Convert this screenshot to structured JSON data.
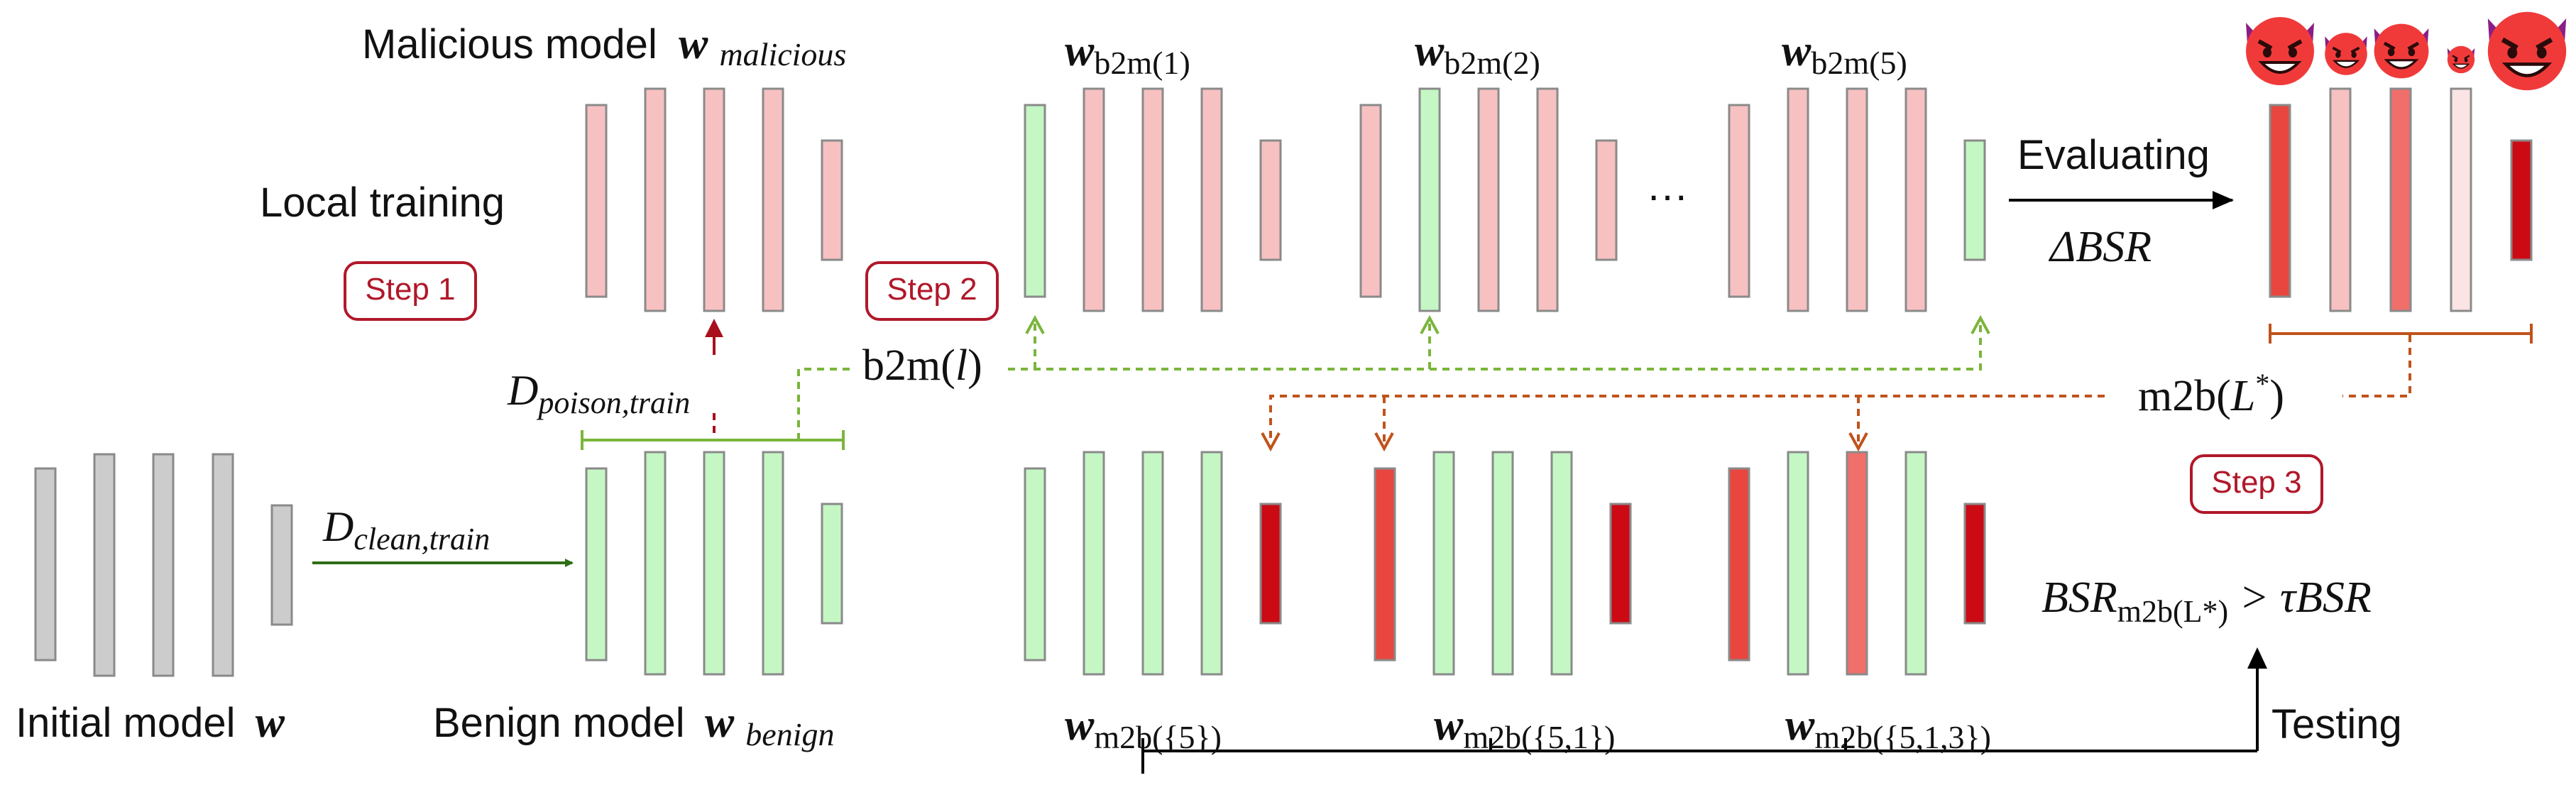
{
  "labels": {
    "malicious_model": "Malicious model",
    "w_malicious_sym": "w",
    "w_malicious_sub": "malicious",
    "local_training": "Local training",
    "initial_model": "Initial model",
    "initial_model_sym": "w",
    "benign_model": "Benign model",
    "w_benign_sym": "w",
    "w_benign_sub": "benign",
    "d_poison": "D",
    "d_poison_sub": "poison,train",
    "d_clean": "D",
    "d_clean_sub": "clean,train",
    "b2m_label": "b2m(",
    "b2m_var": "l",
    "b2m_close": ")",
    "m2b_label": "m2b(",
    "m2b_var": "L",
    "m2b_star": "*",
    "m2b_close": ")",
    "ellipsis": "···",
    "evaluating": "Evaluating",
    "delta_bsr": "ΔBSR",
    "testing": "Testing",
    "bsr_lhs": "BSR",
    "bsr_sub": "m2b(L*)",
    "bsr_rhs": " > τBSR"
  },
  "steps": {
    "step1": "Step 1",
    "step2": "Step 2",
    "step3": "Step 3"
  },
  "model_labels": {
    "b2m1_sym": "w",
    "b2m1_sub": "b2m(1)",
    "b2m2_sym": "w",
    "b2m2_sub": "b2m(2)",
    "b2m5_sym": "w",
    "b2m5_sub": "b2m(5)",
    "m2b5_sym": "w",
    "m2b5_sub": "m2b({5})",
    "m2b51_sym": "w",
    "m2b51_sub": "m2b({5,1})",
    "m2b513_sym": "w",
    "m2b513_sub": "m2b({5,1,3})"
  },
  "colors": {
    "gray_fill": "#cccccc",
    "benign_fill": "#c4f7c4",
    "malicious_fill": "#f7c1c1",
    "red_dark": "#cc0a14",
    "red_mid": "#e8463f",
    "red_light": "#f06f6a",
    "stroke": "#8a8a8a",
    "green_arrow": "#2e6e15",
    "green_dash": "#7ab53b",
    "orange_dash": "#c0531b",
    "red_arrow": "#a8101e",
    "step_border": "#b0182a"
  },
  "icons": [
    "devil-face-icon",
    "devil-face-icon",
    "devil-face-icon",
    "devil-face-icon",
    "devil-face-icon"
  ]
}
